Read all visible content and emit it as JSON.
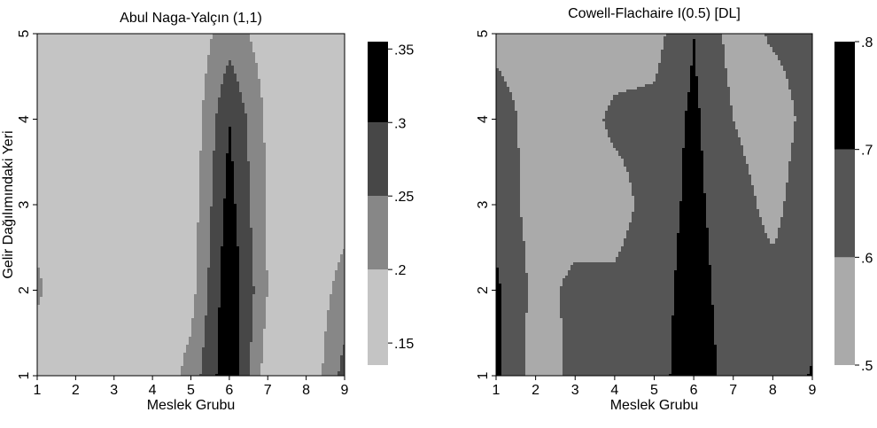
{
  "chart_data": [
    {
      "type": "contour",
      "title": "Abul Naga-Yalçın (1,1)",
      "xlabel": "Meslek Grubu",
      "ylabel": "Gelir Dağılımındaki Yeri",
      "xlim": [
        1,
        9
      ],
      "ylim": [
        1,
        5
      ],
      "x": [
        1,
        2,
        3,
        4,
        5,
        6,
        7,
        8,
        9
      ],
      "y": [
        1,
        2,
        3,
        4,
        5
      ],
      "x_ticks": [
        "1",
        "2",
        "3",
        "4",
        "5",
        "6",
        "7",
        "8",
        "9"
      ],
      "y_ticks": [
        "1",
        "2",
        "3",
        "4",
        "5"
      ],
      "z": [
        [
          0.16,
          0.15,
          0.15,
          0.15,
          0.22,
          0.34,
          0.17,
          0.15,
          0.27
        ],
        [
          0.21,
          0.15,
          0.15,
          0.15,
          0.18,
          0.34,
          0.2,
          0.16,
          0.22
        ],
        [
          0.18,
          0.15,
          0.15,
          0.15,
          0.17,
          0.32,
          0.19,
          0.16,
          0.18
        ],
        [
          0.15,
          0.15,
          0.15,
          0.15,
          0.16,
          0.3,
          0.19,
          0.15,
          0.17
        ],
        [
          0.15,
          0.15,
          0.15,
          0.15,
          0.16,
          0.23,
          0.17,
          0.15,
          0.15
        ]
      ],
      "legend": {
        "position": "right",
        "ticks": [
          ".15",
          ".2",
          ".25",
          ".3",
          ".35"
        ],
        "tick_values": [
          0.15,
          0.2,
          0.25,
          0.3,
          0.35
        ],
        "range": [
          0.135,
          0.355
        ],
        "bands": [
          {
            "from": 0.135,
            "to": 0.2,
            "color": "#c4c4c4"
          },
          {
            "from": 0.2,
            "to": 0.25,
            "color": "#878787"
          },
          {
            "from": 0.25,
            "to": 0.3,
            "color": "#474747"
          },
          {
            "from": 0.3,
            "to": 0.355,
            "color": "#000000"
          }
        ]
      }
    },
    {
      "type": "contour",
      "title": "Cowell-Flachaire I(0.5) [DL]",
      "xlabel": "Meslek Grubu",
      "ylabel": "",
      "xlim": [
        1,
        9
      ],
      "ylim": [
        1,
        5
      ],
      "x": [
        1,
        2,
        3,
        4,
        5,
        6,
        7,
        8,
        9
      ],
      "y": [
        1,
        2,
        3,
        4,
        5
      ],
      "x_ticks": [
        "1",
        "2",
        "3",
        "4",
        "5",
        "6",
        "7",
        "8",
        "9"
      ],
      "y_ticks": [
        "1",
        "2",
        "3",
        "4",
        "5"
      ],
      "z": [
        [
          0.72,
          0.55,
          0.62,
          0.63,
          0.66,
          0.76,
          0.66,
          0.62,
          0.71
        ],
        [
          0.72,
          0.57,
          0.62,
          0.62,
          0.65,
          0.75,
          0.64,
          0.62,
          0.64
        ],
        [
          0.66,
          0.56,
          0.56,
          0.56,
          0.64,
          0.73,
          0.63,
          0.58,
          0.65
        ],
        [
          0.65,
          0.56,
          0.55,
          0.62,
          0.63,
          0.72,
          0.6,
          0.56,
          0.63
        ],
        [
          0.57,
          0.55,
          0.55,
          0.55,
          0.56,
          0.7,
          0.56,
          0.61,
          0.63
        ]
      ],
      "legend": {
        "position": "right",
        "ticks": [
          ".5",
          ".6",
          ".7",
          ".8"
        ],
        "tick_values": [
          0.5,
          0.6,
          0.7,
          0.8
        ],
        "range": [
          0.5,
          0.8
        ],
        "bands": [
          {
            "from": 0.5,
            "to": 0.6,
            "color": "#aaaaaa"
          },
          {
            "from": 0.6,
            "to": 0.7,
            "color": "#555555"
          },
          {
            "from": 0.7,
            "to": 0.8,
            "color": "#000000"
          }
        ]
      }
    }
  ]
}
